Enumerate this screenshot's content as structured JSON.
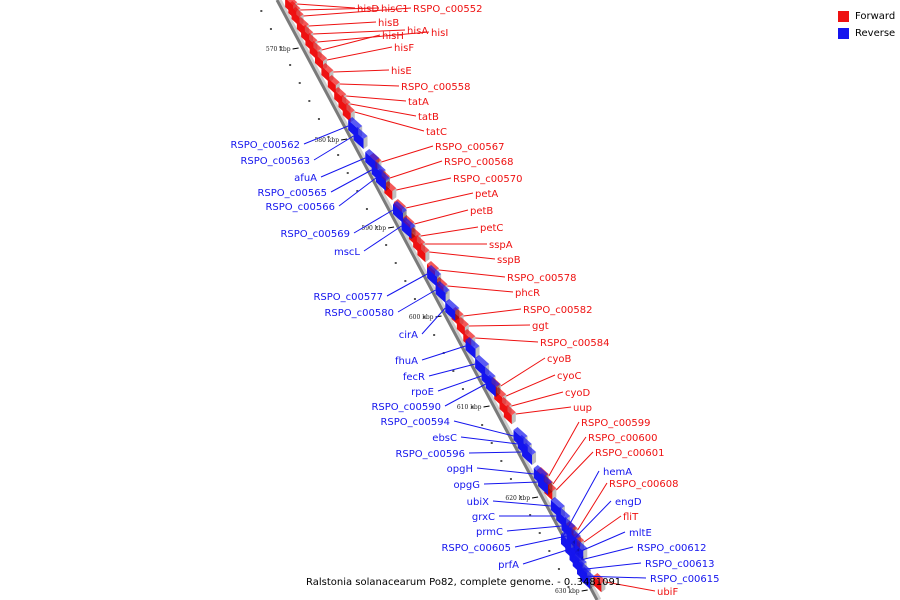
{
  "caption": "Ralstonia solanacearum Po82, complete genome. - 0..3481091",
  "legend": {
    "forward_label": "Forward",
    "reverse_label": "Reverse",
    "forward_color": "#ee1111",
    "reverse_color": "#1515ee"
  },
  "scale_marks": [
    "570 kbp",
    "580 kbp",
    "590 kbp",
    "600 kbp",
    "610 kbp",
    "620 kbp",
    "630 kbp"
  ],
  "forward_genes": [
    "hisD",
    "hisC1",
    "RSPO_c00552",
    "hisB",
    "hisA",
    "hisI",
    "hisH",
    "hisF",
    "hisE",
    "RSPO_c00558",
    "tatA",
    "tatB",
    "tatC",
    "RSPO_c00567",
    "RSPO_c00568",
    "RSPO_c00570",
    "petA",
    "petB",
    "petC",
    "sspA",
    "sspB",
    "RSPO_c00578",
    "phcR",
    "RSPO_c00582",
    "ggt",
    "RSPO_c00584",
    "cyoB",
    "cyoC",
    "cyoD",
    "uup",
    "RSPO_c00599",
    "RSPO_c00600",
    "RSPO_c00601",
    "RSPO_c00608",
    "fliT",
    "ubiF"
  ],
  "reverse_genes": [
    "RSPO_c00562",
    "RSPO_c00563",
    "afuA",
    "RSPO_c00565",
    "RSPO_c00566",
    "RSPO_c00569",
    "mscL",
    "RSPO_c00577",
    "RSPO_c00580",
    "cirA",
    "fhuA",
    "fecR",
    "rpoE",
    "RSPO_c00590",
    "RSPO_c00594",
    "ebsC",
    "RSPO_c00596",
    "opgH",
    "opgG",
    "ubiX",
    "grxC",
    "prmC",
    "RSPO_c00605",
    "prfA",
    "hemA",
    "engD",
    "mltE",
    "RSPO_c00612",
    "RSPO_c00613",
    "RSPO_c00615"
  ]
}
